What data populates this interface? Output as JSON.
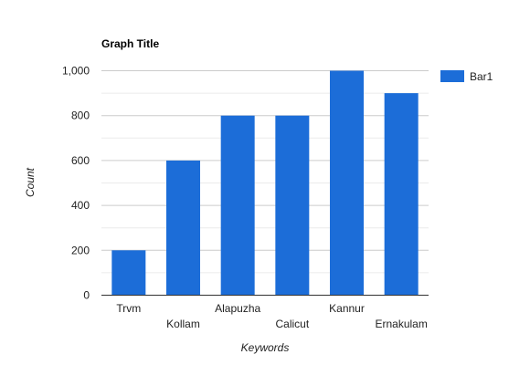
{
  "chart_data": {
    "type": "bar",
    "title": "Graph Title",
    "xlabel": "Keywords",
    "ylabel": "Count",
    "categories": [
      "Trvm",
      "Kollam",
      "Alapuzha",
      "Calicut",
      "Kannur",
      "Ernakulam"
    ],
    "series": [
      {
        "name": "Bar1",
        "values": [
          200,
          600,
          800,
          800,
          1000,
          900
        ],
        "color": "#1c6dd8"
      }
    ],
    "ylim": [
      0,
      1000
    ],
    "yticks": [
      0,
      200,
      400,
      600,
      800,
      1000
    ],
    "ytick_labels": [
      "0",
      "200",
      "400",
      "600",
      "800",
      "1,000"
    ],
    "grid": true,
    "legend": "right"
  }
}
